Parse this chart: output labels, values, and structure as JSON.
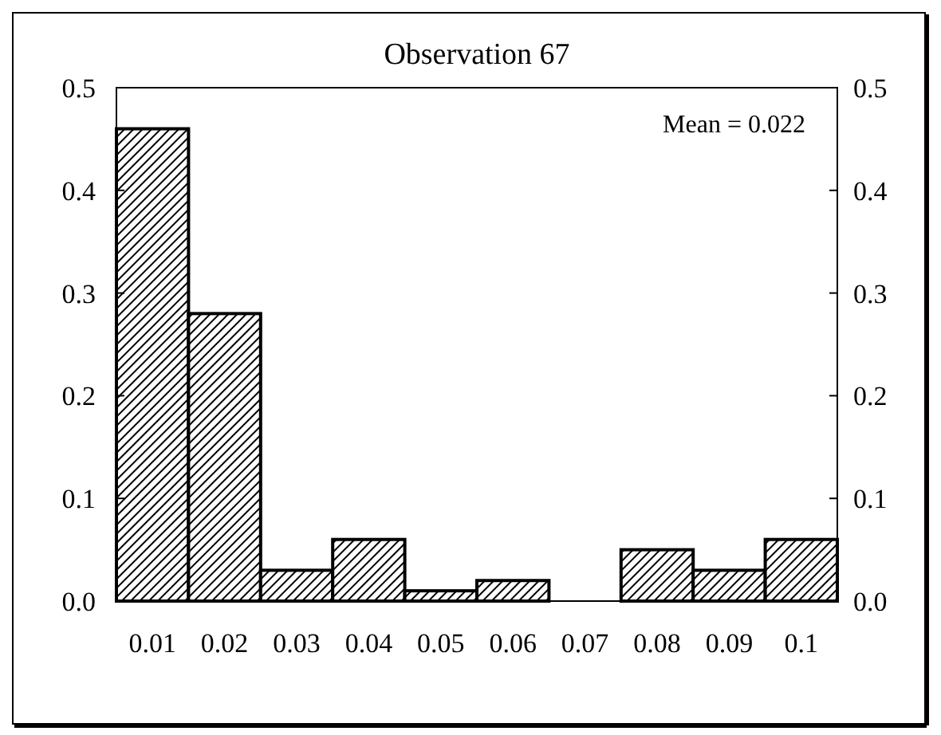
{
  "chart_data": {
    "type": "bar",
    "title": "Observation 67",
    "categories": [
      "0.01",
      "0.02",
      "0.03",
      "0.04",
      "0.05",
      "0.06",
      "0.07",
      "0.08",
      "0.09",
      "0.1"
    ],
    "values": [
      0.46,
      0.28,
      0.03,
      0.06,
      0.01,
      0.02,
      0,
      0.05,
      0.03,
      0.06
    ],
    "color": "#000000",
    "ylim": [
      0,
      0.5
    ],
    "yticks": [
      {
        "value": 0,
        "label": "0.0"
      },
      0.1,
      0.2,
      0.3,
      0.4,
      0.5
    ],
    "y2lim": [
      0,
      0.5
    ],
    "y2ticks": [
      {
        "value": 0,
        "label": "0.0"
      },
      0.1,
      0.2,
      0.3,
      0.4,
      0.5
    ],
    "annotations": [
      "Mean = 0.022"
    ]
  }
}
